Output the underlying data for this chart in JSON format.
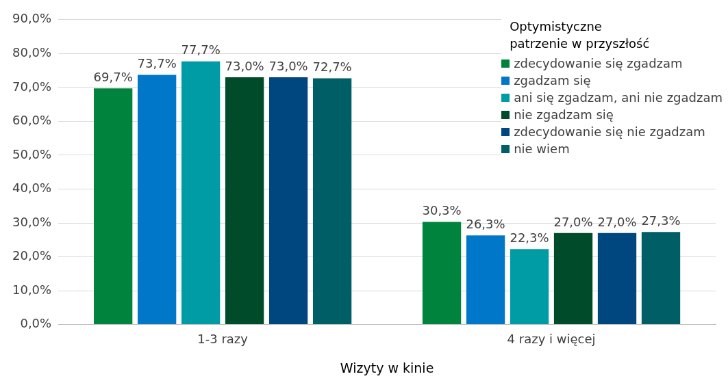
{
  "chart_data": {
    "type": "bar",
    "xlabel": "Wizyty w kinie",
    "legend_title": "Optymistyczne\npatrzenie w przyszłość",
    "categories": [
      "1-3 razy",
      "4 razy i więcej"
    ],
    "series": [
      {
        "name": "zdecydowanie się zgadzam",
        "color": "#00843d",
        "values": [
          69.7,
          30.3
        ],
        "value_labels": [
          "69,7%",
          "30,3%"
        ]
      },
      {
        "name": "zgadzam się",
        "color": "#0077c8",
        "values": [
          73.7,
          26.3
        ],
        "value_labels": [
          "73,7%",
          "26,3%"
        ]
      },
      {
        "name": "ani się zgadzam, ani nie zgadzam",
        "color": "#009ca6",
        "values": [
          77.7,
          22.3
        ],
        "value_labels": [
          "77,7%",
          "22,3%"
        ]
      },
      {
        "name": "nie zgadzam się",
        "color": "#004c2a",
        "values": [
          73.0,
          27.0
        ],
        "value_labels": [
          "73,0%",
          "27,0%"
        ]
      },
      {
        "name": "zdecydowanie się nie zgadzam",
        "color": "#00467f",
        "values": [
          73.0,
          27.0
        ],
        "value_labels": [
          "73,0%",
          "27,0%"
        ]
      },
      {
        "name": "nie wiem",
        "color": "#005f66",
        "values": [
          72.7,
          27.3
        ],
        "value_labels": [
          "72,7%",
          "27,3%"
        ]
      }
    ],
    "ylim": [
      0,
      90
    ],
    "yticks": [
      {
        "value": 0,
        "label": "0,0%"
      },
      {
        "value": 10,
        "label": "10,0%"
      },
      {
        "value": 20,
        "label": "20,0%"
      },
      {
        "value": 30,
        "label": "30,0%"
      },
      {
        "value": 40,
        "label": "40,0%"
      },
      {
        "value": 50,
        "label": "50,0%"
      },
      {
        "value": 60,
        "label": "60,0%"
      },
      {
        "value": 70,
        "label": "70,0%"
      },
      {
        "value": 80,
        "label": "80,0%"
      },
      {
        "value": 90,
        "label": "90,0%"
      }
    ],
    "grid": "y",
    "legend": "top right"
  }
}
